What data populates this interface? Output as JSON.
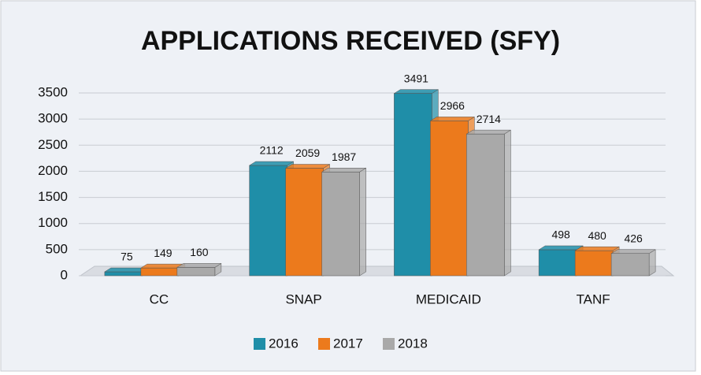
{
  "chart_data": {
    "type": "bar",
    "title": "APPLICATIONS RECEIVED (SFY)",
    "categories": [
      "CC",
      "SNAP",
      "MEDICAID",
      "TANF"
    ],
    "series": [
      {
        "name": "2016",
        "color": "#1f8ea8",
        "values": [
          75,
          2112,
          3491,
          498
        ]
      },
      {
        "name": "2017",
        "color": "#ec7a1c",
        "values": [
          149,
          2059,
          2966,
          480
        ]
      },
      {
        "name": "2018",
        "color": "#a9a9a9",
        "values": [
          160,
          1987,
          2714,
          426
        ]
      }
    ],
    "ylim": [
      0,
      3500
    ],
    "yticks": [
      0,
      500,
      1000,
      1500,
      2000,
      2500,
      3000,
      3500
    ],
    "grid": true,
    "legend": "bottom"
  }
}
